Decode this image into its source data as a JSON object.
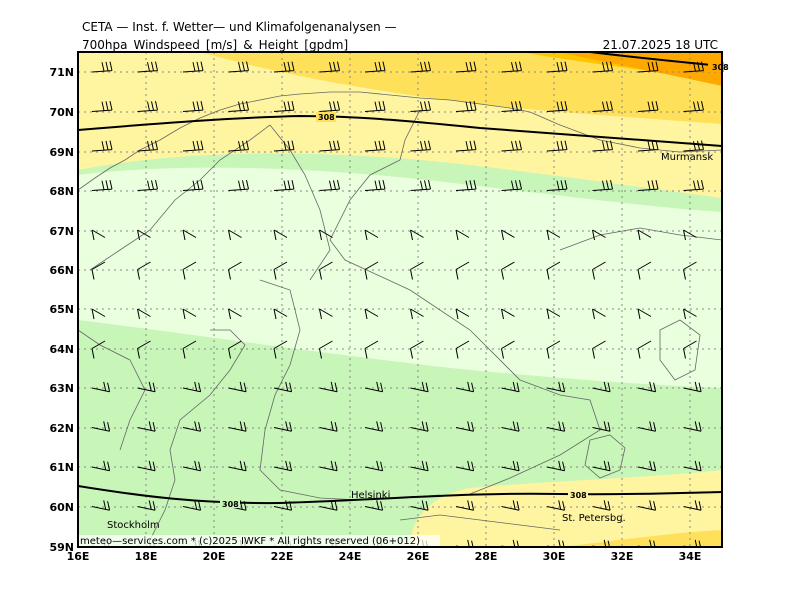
{
  "header": {
    "title": "CETA — Inst. f. Wetter— und Klimafolgenanalysen —",
    "product": "700hpa_Windspeed_[m/s]_&_Height_[gpdm]",
    "valid_time": "21.07.2025 18 UTC"
  },
  "map": {
    "lat_labels": [
      "71N",
      "70N",
      "69N",
      "68N",
      "67N",
      "66N",
      "65N",
      "64N",
      "63N",
      "62N",
      "61N",
      "60N",
      "59N"
    ],
    "lon_labels": [
      "16E",
      "18E",
      "20E",
      "22E",
      "24E",
      "26E",
      "28E",
      "30E",
      "32E",
      "34E"
    ],
    "cities": [
      {
        "name": "Murmansk",
        "lon": 33.1,
        "lat": 68.95
      },
      {
        "name": "Helsinki",
        "lon": 24.9,
        "lat": 60.2
      },
      {
        "name": "Stockholm",
        "lon": 18.07,
        "lat": 59.7
      },
      {
        "name": "St. Petersbg.",
        "lon": 30.3,
        "lat": 59.95
      }
    ],
    "contour_labels": [
      "308",
      "308",
      "308",
      "308",
      "308"
    ],
    "footer": "meteo—services.com * (c)2025 IWKF * All rights reserved (06+012)",
    "colors": {
      "calm": "#eaffde",
      "light": "#c8f5b8",
      "moderate": "#fff5a0",
      "strong": "#ffe05a",
      "stronger": "#ffc600",
      "strongest": "#ffa800"
    }
  }
}
